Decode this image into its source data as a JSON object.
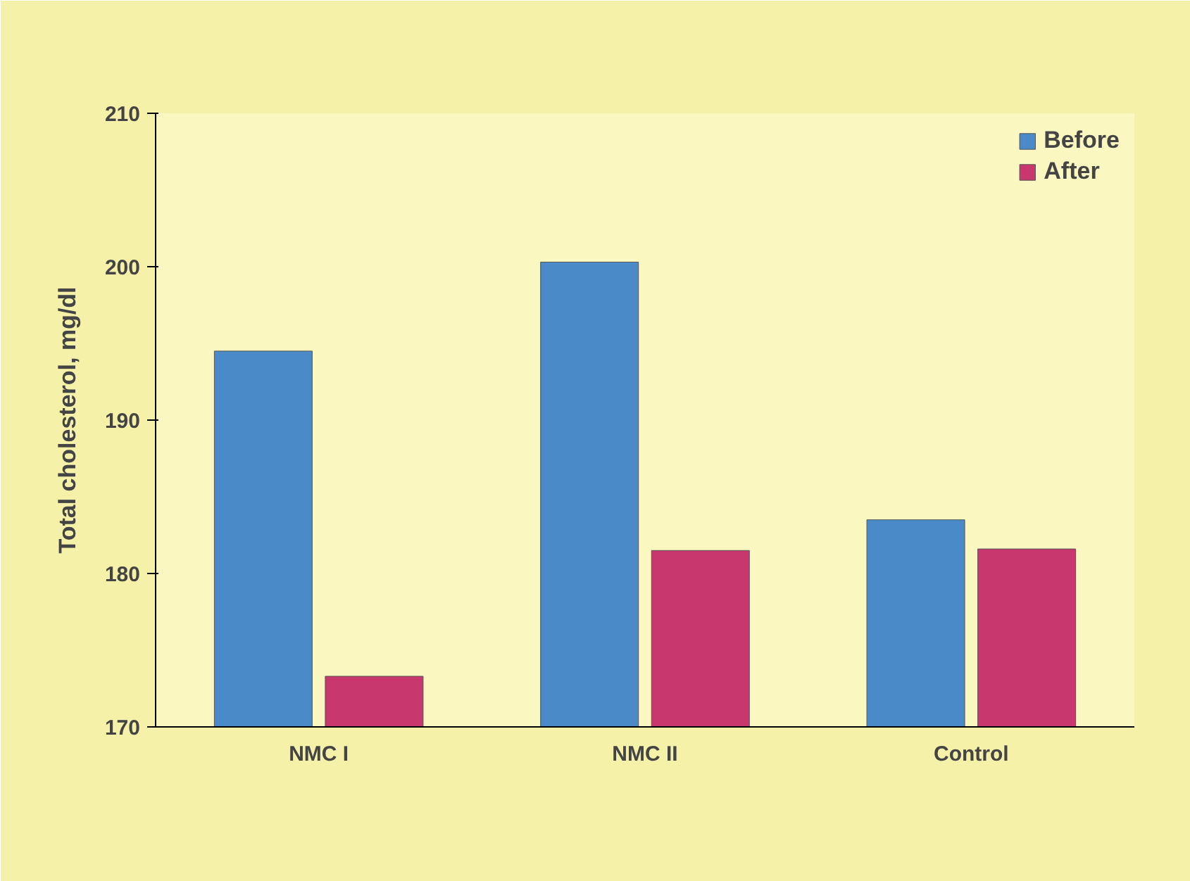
{
  "chart_data": {
    "type": "bar",
    "ylabel": "Total cholesterol, mg/dl",
    "categories": [
      "NMC I",
      "NMC II",
      "Control"
    ],
    "series": [
      {
        "name": "Before",
        "color": "#4a8ac8",
        "values": [
          194.5,
          200.3,
          183.5
        ]
      },
      {
        "name": "After",
        "color": "#c8386e",
        "values": [
          173.3,
          181.5,
          181.6
        ]
      }
    ],
    "ylim": [
      170,
      210
    ],
    "yticks": [
      170,
      180,
      190,
      200,
      210
    ],
    "grid": false,
    "legend": "top right"
  }
}
